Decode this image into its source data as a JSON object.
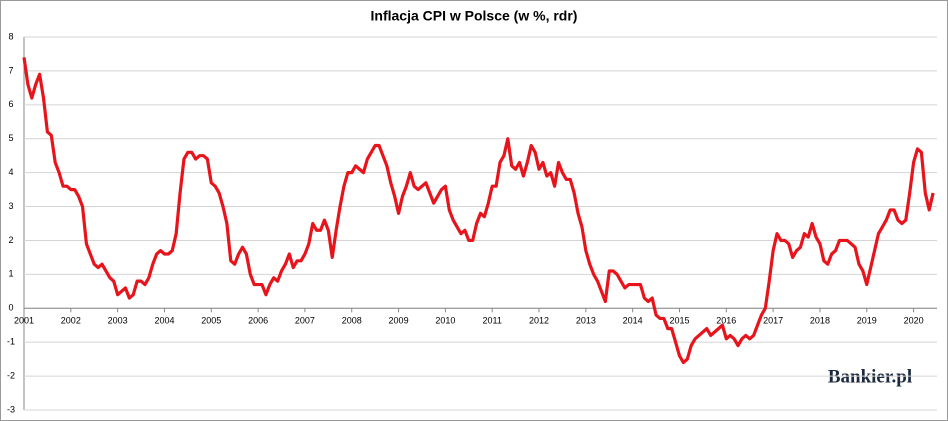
{
  "chart_data": {
    "type": "line",
    "title": "Inflacja CPI w Polsce (w %, rdr)",
    "watermark": "Bankier.pl",
    "categories": [
      "2001",
      null,
      null,
      null,
      null,
      null,
      null,
      null,
      null,
      null,
      null,
      null,
      "2002",
      null,
      null,
      null,
      null,
      null,
      null,
      null,
      null,
      null,
      null,
      null,
      "2003",
      null,
      null,
      null,
      null,
      null,
      null,
      null,
      null,
      null,
      null,
      null,
      "2004",
      null,
      null,
      null,
      null,
      null,
      null,
      null,
      null,
      null,
      null,
      null,
      "2005",
      null,
      null,
      null,
      null,
      null,
      null,
      null,
      null,
      null,
      null,
      null,
      "2006",
      null,
      null,
      null,
      null,
      null,
      null,
      null,
      null,
      null,
      null,
      null,
      "2007",
      null,
      null,
      null,
      null,
      null,
      null,
      null,
      null,
      null,
      null,
      null,
      "2008",
      null,
      null,
      null,
      null,
      null,
      null,
      null,
      null,
      null,
      null,
      null,
      "2009",
      null,
      null,
      null,
      null,
      null,
      null,
      null,
      null,
      null,
      null,
      null,
      "2010",
      null,
      null,
      null,
      null,
      null,
      null,
      null,
      null,
      null,
      null,
      null,
      "2011",
      null,
      null,
      null,
      null,
      null,
      null,
      null,
      null,
      null,
      null,
      null,
      "2012",
      null,
      null,
      null,
      null,
      null,
      null,
      null,
      null,
      null,
      null,
      null,
      "2013",
      null,
      null,
      null,
      null,
      null,
      null,
      null,
      null,
      null,
      null,
      null,
      "2014",
      null,
      null,
      null,
      null,
      null,
      null,
      null,
      null,
      null,
      null,
      null,
      "2015",
      null,
      null,
      null,
      null,
      null,
      null,
      null,
      null,
      null,
      null,
      null,
      "2016",
      null,
      null,
      null,
      null,
      null,
      null,
      null,
      null,
      null,
      null,
      null,
      "2017",
      null,
      null,
      null,
      null,
      null,
      null,
      null,
      null,
      null,
      null,
      null,
      "2018",
      null,
      null,
      null,
      null,
      null,
      null,
      null,
      null,
      null,
      null,
      null,
      "2019",
      null,
      null,
      null,
      null,
      null,
      null,
      null,
      null,
      null,
      null,
      null,
      "2020",
      null,
      null,
      null,
      null,
      null
    ],
    "values": [
      7.4,
      6.6,
      6.2,
      6.6,
      6.9,
      6.2,
      5.2,
      5.1,
      4.3,
      4.0,
      3.6,
      3.6,
      3.5,
      3.5,
      3.3,
      3.0,
      1.9,
      1.6,
      1.3,
      1.2,
      1.3,
      1.1,
      0.9,
      0.8,
      0.4,
      0.5,
      0.6,
      0.3,
      0.4,
      0.8,
      0.8,
      0.7,
      0.9,
      1.3,
      1.6,
      1.7,
      1.6,
      1.6,
      1.7,
      2.2,
      3.4,
      4.4,
      4.6,
      4.6,
      4.4,
      4.5,
      4.5,
      4.4,
      3.7,
      3.6,
      3.4,
      3.0,
      2.5,
      1.4,
      1.3,
      1.6,
      1.8,
      1.6,
      1.0,
      0.7,
      0.7,
      0.7,
      0.4,
      0.7,
      0.9,
      0.8,
      1.1,
      1.3,
      1.6,
      1.2,
      1.4,
      1.4,
      1.6,
      1.9,
      2.5,
      2.3,
      2.3,
      2.6,
      2.3,
      1.5,
      2.3,
      3.0,
      3.6,
      4.0,
      4.0,
      4.2,
      4.1,
      4.0,
      4.4,
      4.6,
      4.8,
      4.8,
      4.5,
      4.2,
      3.7,
      3.3,
      2.8,
      3.3,
      3.6,
      4.0,
      3.6,
      3.5,
      3.6,
      3.7,
      3.4,
      3.1,
      3.3,
      3.5,
      3.6,
      2.9,
      2.6,
      2.4,
      2.2,
      2.3,
      2.0,
      2.0,
      2.5,
      2.8,
      2.7,
      3.1,
      3.6,
      3.6,
      4.3,
      4.5,
      5.0,
      4.2,
      4.1,
      4.3,
      3.9,
      4.3,
      4.8,
      4.6,
      4.1,
      4.3,
      3.9,
      4.0,
      3.6,
      4.3,
      4.0,
      3.8,
      3.8,
      3.4,
      2.8,
      2.4,
      1.7,
      1.3,
      1.0,
      0.8,
      0.5,
      0.2,
      1.1,
      1.1,
      1.0,
      0.8,
      0.6,
      0.7,
      0.7,
      0.7,
      0.7,
      0.3,
      0.2,
      0.3,
      -0.2,
      -0.3,
      -0.3,
      -0.6,
      -0.6,
      -1.0,
      -1.4,
      -1.6,
      -1.5,
      -1.1,
      -0.9,
      -0.8,
      -0.7,
      -0.6,
      -0.8,
      -0.7,
      -0.6,
      -0.5,
      -0.9,
      -0.8,
      -0.9,
      -1.1,
      -0.9,
      -0.8,
      -0.9,
      -0.8,
      -0.5,
      -0.2,
      0.0,
      0.8,
      1.7,
      2.2,
      2.0,
      2.0,
      1.9,
      1.5,
      1.7,
      1.8,
      2.2,
      2.1,
      2.5,
      2.1,
      1.9,
      1.4,
      1.3,
      1.6,
      1.7,
      2.0,
      2.0,
      2.0,
      1.9,
      1.8,
      1.3,
      1.1,
      0.7,
      1.2,
      1.7,
      2.2,
      2.4,
      2.6,
      2.9,
      2.9,
      2.6,
      2.5,
      2.6,
      3.4,
      4.3,
      4.7,
      4.6,
      3.4,
      2.9,
      3.4
    ],
    "color": "#e8141b",
    "ylim": [
      -3,
      8
    ],
    "yticks": [
      -3,
      -2,
      -1,
      0,
      1,
      2,
      3,
      4,
      5,
      6,
      7,
      8
    ],
    "grid": true
  }
}
